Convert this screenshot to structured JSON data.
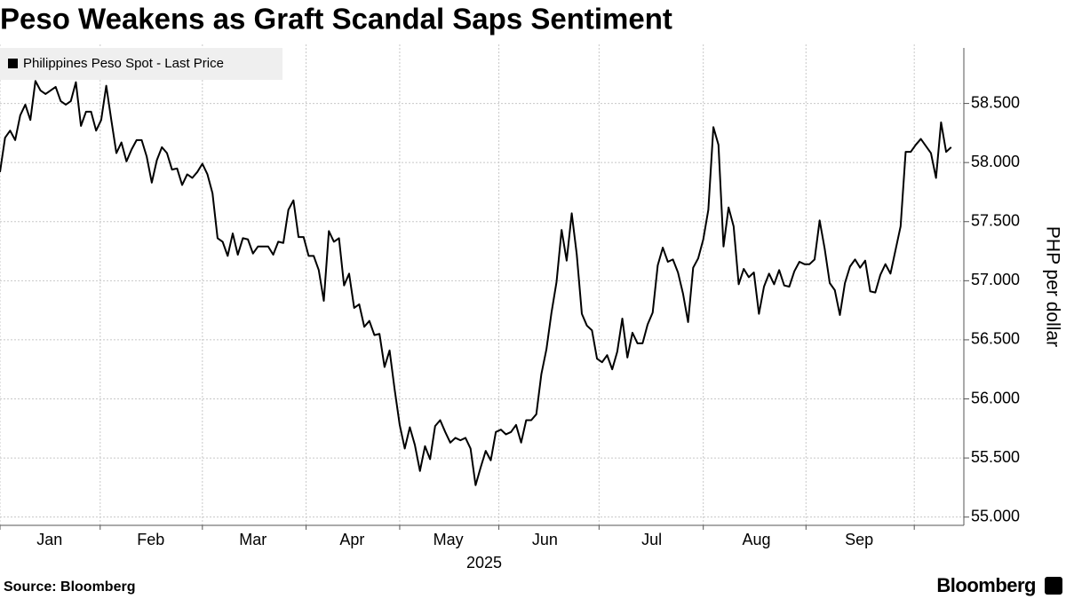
{
  "chart_data": {
    "type": "line",
    "title": "Peso Weakens as Graft Scandal Saps Sentiment",
    "source": "Source: Bloomberg",
    "brand": "Bloomberg",
    "y_label": "PHP per dollar",
    "x_label": "2025",
    "series": [
      {
        "name": "Philippines Peso Spot - Last Price",
        "color": "#000000",
        "values": [
          57.92,
          58.21,
          58.27,
          58.19,
          58.4,
          58.49,
          58.36,
          58.69,
          58.61,
          58.58,
          58.61,
          58.64,
          58.52,
          58.49,
          58.52,
          58.68,
          58.31,
          58.43,
          58.43,
          58.27,
          58.36,
          58.65,
          58.36,
          58.08,
          58.17,
          58.01,
          58.11,
          58.19,
          58.19,
          58.05,
          57.83,
          58.02,
          58.13,
          58.08,
          57.94,
          57.95,
          57.81,
          57.9,
          57.87,
          57.92,
          57.99,
          57.9,
          57.74,
          57.36,
          57.33,
          57.21,
          57.4,
          57.22,
          57.36,
          57.35,
          57.23,
          57.29,
          57.29,
          57.29,
          57.22,
          57.33,
          57.32,
          57.6,
          57.68,
          57.37,
          57.37,
          57.21,
          57.21,
          57.09,
          56.83,
          57.42,
          57.33,
          57.36,
          56.96,
          57.06,
          56.77,
          56.8,
          56.61,
          56.66,
          56.54,
          56.55,
          56.27,
          56.41,
          56.08,
          55.78,
          55.58,
          55.76,
          55.61,
          55.39,
          55.6,
          55.49,
          55.77,
          55.82,
          55.72,
          55.63,
          55.67,
          55.65,
          55.67,
          55.58,
          55.27,
          55.42,
          55.56,
          55.48,
          55.72,
          55.74,
          55.7,
          55.72,
          55.78,
          55.63,
          55.82,
          55.82,
          55.87,
          56.21,
          56.42,
          56.73,
          56.99,
          57.43,
          57.17,
          57.57,
          57.22,
          56.72,
          56.62,
          56.58,
          56.34,
          56.31,
          56.37,
          56.25,
          56.4,
          56.68,
          56.35,
          56.56,
          56.47,
          56.47,
          56.63,
          56.73,
          57.13,
          57.28,
          57.16,
          57.18,
          57.07,
          56.89,
          56.65,
          57.11,
          57.19,
          57.35,
          57.6,
          58.3,
          58.15,
          57.29,
          57.62,
          57.46,
          56.97,
          57.1,
          57.03,
          57.07,
          56.72,
          56.95,
          57.06,
          56.97,
          57.09,
          56.96,
          56.95,
          57.08,
          57.16,
          57.14,
          57.14,
          57.18,
          57.51,
          57.27,
          56.98,
          56.92,
          56.71,
          56.98,
          57.12,
          57.18,
          57.11,
          57.17,
          56.91,
          56.9,
          57.05,
          57.14,
          57.06,
          57.26,
          57.46,
          58.09,
          58.09,
          58.15,
          58.2,
          58.14,
          58.08,
          57.87,
          58.34,
          58.09,
          58.13
        ]
      }
    ],
    "xlim": [
      0,
      190.5
    ],
    "xgrid": [
      0,
      19.8,
      40,
      60.5,
      79,
      98.6,
      118.4,
      139,
      159.3,
      180.7
    ],
    "xticks": [
      {
        "value": 9.8,
        "label": "Jan"
      },
      {
        "value": 29.8,
        "label": "Feb"
      },
      {
        "value": 50,
        "label": "Mar"
      },
      {
        "value": 69.6,
        "label": "Apr"
      },
      {
        "value": 88.6,
        "label": "May"
      },
      {
        "value": 107.7,
        "label": "Jun"
      },
      {
        "value": 128.8,
        "label": "Jul"
      },
      {
        "value": 149.5,
        "label": "Aug"
      },
      {
        "value": 169.8,
        "label": "Sep"
      }
    ],
    "ylim": [
      54.93,
      59.0
    ],
    "yticks": [
      {
        "value": 55,
        "label": "55.000"
      },
      {
        "value": 55.5,
        "label": "55.500"
      },
      {
        "value": 56,
        "label": "56.000"
      },
      {
        "value": 56.5,
        "label": "56.500"
      },
      {
        "value": 57,
        "label": "57.000"
      },
      {
        "value": 57.5,
        "label": "57.500"
      },
      {
        "value": 58,
        "label": "58.000"
      },
      {
        "value": 58.5,
        "label": "58.500"
      }
    ],
    "grid": true,
    "legend": "top-left"
  }
}
